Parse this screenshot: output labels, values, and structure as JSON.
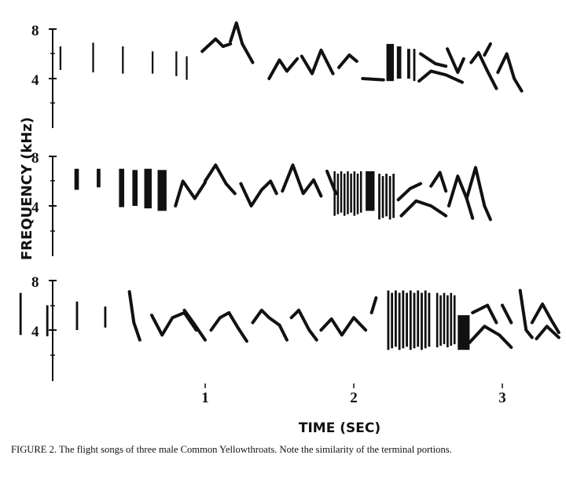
{
  "figure": {
    "y_axis_label": "FREQUENCY (kHz)",
    "x_axis_label": "TIME (SEC)",
    "x_ticks": [
      "1",
      "2",
      "3"
    ],
    "y_ticks": [
      "8",
      "4"
    ],
    "panels": [
      {
        "id": "song-1",
        "segments": [
          {
            "shape": "bar",
            "t": 0.02,
            "w": 0.012,
            "f1": 4.7,
            "f2": 6.6
          },
          {
            "shape": "bar",
            "t": 0.24,
            "w": 0.012,
            "f1": 4.5,
            "f2": 6.9
          },
          {
            "shape": "bar",
            "t": 0.44,
            "w": 0.012,
            "f1": 4.4,
            "f2": 6.6
          },
          {
            "shape": "bar",
            "t": 0.64,
            "w": 0.012,
            "f1": 4.4,
            "f2": 6.2
          },
          {
            "shape": "bar",
            "t": 0.8,
            "w": 0.012,
            "f1": 4.2,
            "f2": 6.2
          },
          {
            "shape": "bar",
            "t": 0.87,
            "w": 0.012,
            "f1": 3.9,
            "f2": 5.8
          },
          {
            "shape": "path",
            "pts": [
              [
                0.98,
                6.2
              ],
              [
                1.07,
                7.2
              ],
              [
                1.12,
                6.6
              ],
              [
                1.17,
                6.8
              ]
            ]
          },
          {
            "shape": "path",
            "pts": [
              [
                1.17,
                7.0
              ],
              [
                1.21,
                8.5
              ],
              [
                1.25,
                6.8
              ],
              [
                1.32,
                5.3
              ]
            ]
          },
          {
            "shape": "path",
            "pts": [
              [
                1.43,
                4.0
              ],
              [
                1.5,
                5.5
              ],
              [
                1.55,
                4.6
              ],
              [
                1.62,
                5.6
              ]
            ]
          },
          {
            "shape": "path",
            "pts": [
              [
                1.65,
                5.8
              ],
              [
                1.72,
                4.4
              ],
              [
                1.78,
                6.3
              ],
              [
                1.86,
                4.4
              ]
            ]
          },
          {
            "shape": "path",
            "pts": [
              [
                1.9,
                4.9
              ],
              [
                1.97,
                5.9
              ],
              [
                2.02,
                5.4
              ]
            ]
          },
          {
            "shape": "path",
            "pts": [
              [
                2.06,
                4.0
              ],
              [
                2.2,
                3.9
              ]
            ]
          },
          {
            "shape": "block",
            "t": 2.22,
            "w": 0.05,
            "f1": 3.8,
            "f2": 6.8
          },
          {
            "shape": "block",
            "t": 2.29,
            "w": 0.03,
            "f1": 4.0,
            "f2": 6.6
          },
          {
            "shape": "bar",
            "t": 2.36,
            "w": 0.02,
            "f1": 4.0,
            "f2": 6.4
          },
          {
            "shape": "bar",
            "t": 2.4,
            "w": 0.015,
            "f1": 3.8,
            "f2": 6.4
          },
          {
            "shape": "path",
            "pts": [
              [
                2.45,
                6.0
              ],
              [
                2.55,
                5.2
              ],
              [
                2.62,
                5.0
              ]
            ]
          },
          {
            "shape": "path",
            "pts": [
              [
                2.44,
                3.8
              ],
              [
                2.52,
                4.6
              ],
              [
                2.62,
                4.3
              ],
              [
                2.73,
                3.7
              ]
            ]
          },
          {
            "shape": "path",
            "pts": [
              [
                2.63,
                6.4
              ],
              [
                2.7,
                4.5
              ],
              [
                2.74,
                5.6
              ]
            ]
          },
          {
            "shape": "path",
            "pts": [
              [
                2.79,
                5.3
              ],
              [
                2.84,
                6.1
              ],
              [
                2.9,
                4.6
              ],
              [
                2.96,
                3.2
              ]
            ]
          },
          {
            "shape": "path",
            "pts": [
              [
                2.88,
                5.9
              ],
              [
                2.92,
                6.8
              ]
            ]
          },
          {
            "shape": "path",
            "pts": [
              [
                2.97,
                4.5
              ],
              [
                3.03,
                6.0
              ],
              [
                3.08,
                4.0
              ],
              [
                3.13,
                3.0
              ]
            ]
          }
        ]
      },
      {
        "id": "song-2",
        "segments": [
          {
            "shape": "block",
            "t": 0.12,
            "w": 0.03,
            "f1": 5.3,
            "f2": 7.0
          },
          {
            "shape": "block",
            "t": 0.27,
            "w": 0.025,
            "f1": 5.5,
            "f2": 7.0
          },
          {
            "shape": "block",
            "t": 0.42,
            "w": 0.035,
            "f1": 3.9,
            "f2": 7.0
          },
          {
            "shape": "block",
            "t": 0.51,
            "w": 0.035,
            "f1": 4.0,
            "f2": 6.9
          },
          {
            "shape": "block",
            "t": 0.59,
            "w": 0.05,
            "f1": 3.8,
            "f2": 7.0
          },
          {
            "shape": "block",
            "t": 0.68,
            "w": 0.06,
            "f1": 3.6,
            "f2": 6.9
          },
          {
            "shape": "path",
            "pts": [
              [
                0.8,
                4.0
              ],
              [
                0.85,
                6.0
              ],
              [
                0.93,
                4.6
              ],
              [
                1.0,
                5.9
              ]
            ]
          },
          {
            "shape": "path",
            "pts": [
              [
                1.0,
                6.0
              ],
              [
                1.07,
                7.3
              ],
              [
                1.14,
                5.8
              ],
              [
                1.2,
                5.0
              ]
            ]
          },
          {
            "shape": "path",
            "pts": [
              [
                1.24,
                5.8
              ],
              [
                1.31,
                4.0
              ],
              [
                1.38,
                5.3
              ],
              [
                1.44,
                6.0
              ],
              [
                1.48,
                5.0
              ]
            ]
          },
          {
            "shape": "path",
            "pts": [
              [
                1.52,
                5.2
              ],
              [
                1.59,
                7.3
              ],
              [
                1.66,
                5.0
              ],
              [
                1.73,
                6.1
              ],
              [
                1.78,
                4.8
              ]
            ]
          },
          {
            "shape": "path",
            "pts": [
              [
                1.82,
                6.8
              ],
              [
                1.88,
                5.0
              ]
            ]
          },
          {
            "shape": "stripes",
            "t": 1.86,
            "w": 0.2,
            "f1": 3.2,
            "f2": 6.8,
            "n": 9
          },
          {
            "shape": "block",
            "t": 2.08,
            "w": 0.06,
            "f1": 3.6,
            "f2": 6.8
          },
          {
            "shape": "stripes",
            "t": 2.16,
            "w": 0.12,
            "f1": 2.9,
            "f2": 6.6,
            "n": 5
          },
          {
            "shape": "path",
            "pts": [
              [
                2.3,
                4.5
              ],
              [
                2.38,
                5.4
              ],
              [
                2.45,
                5.8
              ]
            ]
          },
          {
            "shape": "path",
            "pts": [
              [
                2.32,
                3.2
              ],
              [
                2.42,
                4.4
              ],
              [
                2.52,
                4.0
              ],
              [
                2.62,
                3.2
              ]
            ]
          },
          {
            "shape": "path",
            "pts": [
              [
                2.52,
                5.6
              ],
              [
                2.58,
                6.7
              ],
              [
                2.62,
                5.2
              ]
            ]
          },
          {
            "shape": "path",
            "pts": [
              [
                2.64,
                4.0
              ],
              [
                2.7,
                6.4
              ],
              [
                2.76,
                4.6
              ],
              [
                2.8,
                3.0
              ]
            ]
          },
          {
            "shape": "path",
            "pts": [
              [
                2.76,
                4.6
              ],
              [
                2.82,
                7.1
              ],
              [
                2.88,
                4.0
              ],
              [
                2.92,
                2.9
              ]
            ]
          }
        ]
      },
      {
        "id": "song-3",
        "segments": [
          {
            "shape": "bar",
            "t": -0.25,
            "w": 0.015,
            "f1": 3.6,
            "f2": 7.0
          },
          {
            "shape": "bar",
            "t": -0.07,
            "w": 0.015,
            "f1": 3.5,
            "f2": 6.0
          },
          {
            "shape": "bar",
            "t": 0.13,
            "w": 0.015,
            "f1": 4.0,
            "f2": 6.3
          },
          {
            "shape": "bar",
            "t": 0.32,
            "w": 0.015,
            "f1": 4.2,
            "f2": 5.9
          },
          {
            "shape": "path",
            "pts": [
              [
                0.49,
                7.1
              ],
              [
                0.52,
                4.6
              ],
              [
                0.56,
                3.2
              ]
            ]
          },
          {
            "shape": "path",
            "pts": [
              [
                0.64,
                5.2
              ],
              [
                0.71,
                3.6
              ],
              [
                0.78,
                5.0
              ],
              [
                0.86,
                5.4
              ],
              [
                0.94,
                4.0
              ]
            ]
          },
          {
            "shape": "path",
            "pts": [
              [
                0.86,
                5.6
              ],
              [
                0.92,
                4.6
              ],
              [
                1.0,
                3.2
              ]
            ]
          },
          {
            "shape": "path",
            "pts": [
              [
                1.04,
                4.0
              ],
              [
                1.1,
                5.0
              ],
              [
                1.16,
                5.4
              ],
              [
                1.22,
                4.2
              ],
              [
                1.28,
                3.1
              ]
            ]
          },
          {
            "shape": "path",
            "pts": [
              [
                1.32,
                4.6
              ],
              [
                1.38,
                5.6
              ],
              [
                1.43,
                5.0
              ],
              [
                1.5,
                4.4
              ],
              [
                1.55,
                3.2
              ]
            ]
          },
          {
            "shape": "path",
            "pts": [
              [
                1.58,
                5.0
              ],
              [
                1.63,
                5.6
              ],
              [
                1.7,
                4.0
              ],
              [
                1.75,
                3.2
              ]
            ]
          },
          {
            "shape": "path",
            "pts": [
              [
                1.78,
                4.0
              ],
              [
                1.85,
                4.9
              ],
              [
                1.92,
                3.6
              ],
              [
                2.0,
                5.0
              ],
              [
                2.08,
                4.0
              ]
            ]
          },
          {
            "shape": "path",
            "pts": [
              [
                2.12,
                5.4
              ],
              [
                2.15,
                6.6
              ]
            ]
          },
          {
            "shape": "stripes",
            "t": 2.22,
            "w": 0.3,
            "f1": 2.4,
            "f2": 7.2,
            "n": 12
          },
          {
            "shape": "stripes",
            "t": 2.55,
            "w": 0.14,
            "f1": 2.6,
            "f2": 7.0,
            "n": 6
          },
          {
            "shape": "block",
            "t": 2.7,
            "w": 0.08,
            "f1": 2.4,
            "f2": 5.2
          },
          {
            "shape": "path",
            "pts": [
              [
                2.78,
                3.0
              ],
              [
                2.88,
                4.3
              ],
              [
                2.98,
                3.6
              ],
              [
                3.06,
                2.6
              ]
            ]
          },
          {
            "shape": "path",
            "pts": [
              [
                2.8,
                5.4
              ],
              [
                2.9,
                6.0
              ],
              [
                2.96,
                4.6
              ]
            ]
          },
          {
            "shape": "path",
            "pts": [
              [
                3.0,
                6.0
              ],
              [
                3.06,
                4.6
              ]
            ]
          },
          {
            "shape": "path",
            "pts": [
              [
                3.12,
                7.2
              ],
              [
                3.16,
                4.0
              ],
              [
                3.2,
                3.4
              ]
            ]
          },
          {
            "shape": "path",
            "pts": [
              [
                3.2,
                4.6
              ],
              [
                3.27,
                6.1
              ],
              [
                3.33,
                4.8
              ],
              [
                3.38,
                3.8
              ]
            ]
          },
          {
            "shape": "path",
            "pts": [
              [
                3.23,
                3.3
              ],
              [
                3.3,
                4.3
              ],
              [
                3.38,
                3.4
              ]
            ]
          }
        ]
      }
    ]
  },
  "caption": "FIGURE 2.    The flight songs of three male Common Yellowthroats. Note the similarity of the terminal portions."
}
